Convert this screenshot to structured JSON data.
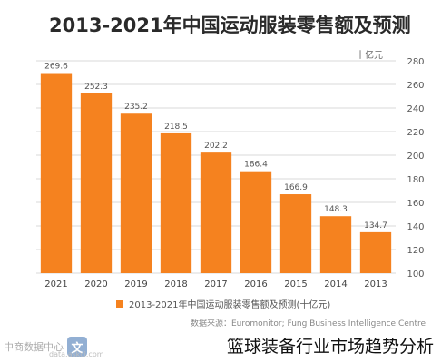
{
  "chart_data": {
    "type": "bar",
    "title": "2013-2021年中国运动服装零售额及预测",
    "unit_label": "十亿元",
    "categories": [
      "2021",
      "2020",
      "2019",
      "2018",
      "2017",
      "2016",
      "2015",
      "2014",
      "2013"
    ],
    "series": [
      {
        "name": "2013-2021年中国运动服装零售额及预测(十亿元)",
        "values": [
          269.6,
          252.3,
          235.2,
          218.5,
          202.2,
          186.4,
          166.9,
          148.3,
          134.7
        ]
      }
    ],
    "ylim": [
      100,
      280
    ],
    "y_ticks": [
      100,
      120,
      140,
      160,
      180,
      200,
      220,
      240,
      260,
      280
    ],
    "y_axis_side": "right",
    "grid": true,
    "legend_position": "bottom",
    "colors": {
      "bar": "#f5821f",
      "grid": "#d9d9d9"
    }
  },
  "source_text": "数据来源：Euromonitor; Fung Business Intelligence Centre",
  "watermark": {
    "text": "中商数据中心",
    "badge": "文",
    "sub": "data.askci.com"
  },
  "caption": "篮球装备行业市场趋势分析"
}
